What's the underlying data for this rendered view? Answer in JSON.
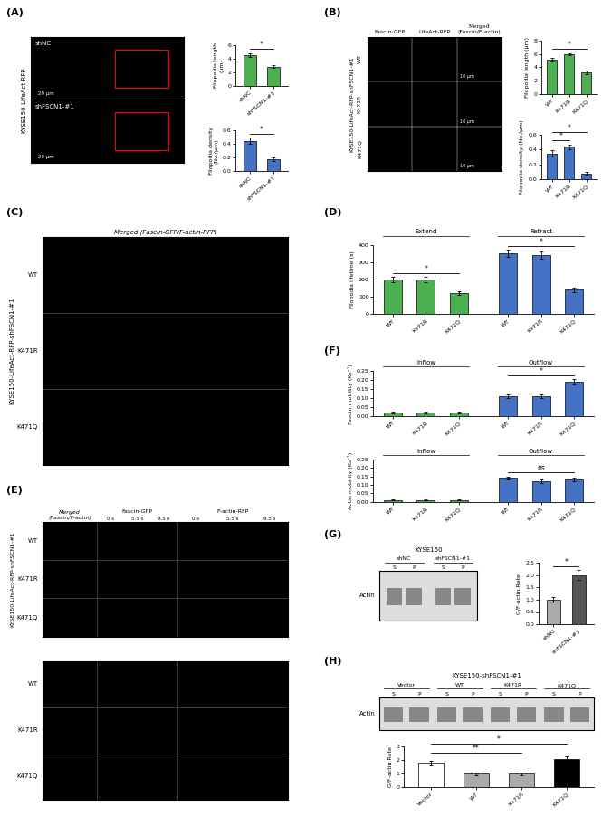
{
  "chart_data": [
    {
      "type": "image",
      "ylabel": "KYSE150-LifeAct-RFP",
      "annotations": [
        "shNC",
        "shFSCN1-#1",
        "20 μm",
        "20 μm"
      ]
    },
    {
      "type": "bar",
      "categories": [
        "shNC",
        "shFSCN1-#1"
      ],
      "values": [
        4.5,
        2.8
      ],
      "errors": [
        0.3,
        0.2
      ],
      "ylabel": "Filopodia length\n(μm)",
      "ylim": [
        0,
        6
      ],
      "yticks": [
        0,
        2,
        4,
        6
      ],
      "colors": [
        "#4CAF50",
        "#4CAF50"
      ],
      "annotations": [
        {
          "text": "*",
          "pair": [
            0,
            1
          ]
        }
      ]
    },
    {
      "type": "bar",
      "categories": [
        "shNC",
        "shFSCN1-#1"
      ],
      "values": [
        0.45,
        0.18
      ],
      "errors": [
        0.05,
        0.03
      ],
      "ylabel": "Filopodia density\n(No./μm)",
      "ylim": [
        0,
        0.6
      ],
      "yticks": [
        {
          "value": 0,
          "label": "0.0"
        },
        0.2,
        0.4,
        0.6
      ],
      "colors": [
        "#4472C4",
        "#4472C4"
      ],
      "annotations": [
        {
          "text": "*",
          "pair": [
            0,
            1
          ]
        }
      ]
    },
    {
      "type": "image",
      "ylabel": "KYSE150-LifeAct-RFP-shFSCN1-#1",
      "annotations": [
        "Fascin-GFP",
        "LifeAct-RFP",
        "Merged\n(Fascin/F-actin)",
        "WT",
        "K471R",
        "K471Q",
        "10 μm",
        "10 μm",
        "10 μm"
      ]
    },
    {
      "type": "bar",
      "categories": [
        "WT",
        "K471R",
        "K471Q"
      ],
      "values": [
        5.2,
        6.0,
        3.2
      ],
      "errors": [
        0.2,
        0.15,
        0.25
      ],
      "ylabel": "Filopodia length (μm)",
      "ylim": [
        0,
        8
      ],
      "yticks": [
        0,
        2,
        4,
        6,
        8
      ],
      "colors": [
        "#4CAF50",
        "#4CAF50",
        "#4CAF50"
      ],
      "annotations": [
        {
          "text": "*",
          "pair": [
            0,
            2
          ]
        }
      ]
    },
    {
      "type": "bar",
      "categories": [
        "WT",
        "K471R",
        "K471Q"
      ],
      "values": [
        0.35,
        0.44,
        0.08
      ],
      "errors": [
        0.04,
        0.03,
        0.02
      ],
      "ylabel": "Filopodia density (No./μm)",
      "ylim": [
        0,
        0.6
      ],
      "yticks": [
        {
          "value": 0,
          "label": "0.0"
        },
        0.2,
        0.4,
        0.6
      ],
      "colors": [
        "#4472C4",
        "#4472C4",
        "#4472C4"
      ],
      "annotations": [
        {
          "text": "*",
          "pair": [
            0,
            1
          ]
        },
        {
          "text": "*",
          "pair": [
            0,
            2
          ]
        }
      ]
    },
    {
      "type": "image",
      "title": "Merged (Fascin-GFP/F-actin-RFP)",
      "ylabel": "KYSE150-LifeAct-RFP-shFSCN1-#1",
      "annotations": [
        "WT",
        "K471R",
        "K471Q"
      ]
    },
    {
      "type": "bar",
      "categories": [
        "WT",
        "K471R",
        "K471Q"
      ],
      "series": [
        {
          "name": "Extend",
          "color": "#4CAF50",
          "values": [
            200,
            200,
            120
          ],
          "errors": [
            15,
            15,
            10
          ]
        },
        {
          "name": "Retract",
          "color": "#4472C4",
          "values": [
            350,
            340,
            140
          ],
          "errors": [
            20,
            20,
            15
          ]
        }
      ],
      "ylabel": "Filopodia lifetime (s)",
      "ylim": [
        0,
        400
      ],
      "yticks": [
        0,
        100,
        200,
        300,
        400
      ],
      "annotations": [
        {
          "text": "*",
          "series": 0,
          "pair": [
            0,
            2
          ]
        },
        {
          "text": "*",
          "series": 1,
          "pair": [
            0,
            2
          ]
        }
      ]
    },
    {
      "type": "image",
      "ylabel": "KYSE150-LifeAct-RFP-shFSCN1-#1",
      "annotations": [
        "Merged\n(Fascin/F-actin)",
        "Fascin-GFP",
        "F-actin-RFP",
        "WT",
        "K471R",
        "K471Q",
        "0 s",
        "5.5 s",
        "9.5 s",
        "0 s",
        "5.5 s",
        "9.5 s"
      ]
    },
    {
      "type": "bar",
      "categories": [
        "WT",
        "K471R",
        "K471Q"
      ],
      "series": [
        {
          "name": "Inflow",
          "color": "#4CAF50",
          "values": [
            0.02,
            0.02,
            0.02
          ],
          "errors": [
            0.003,
            0.003,
            0.003
          ]
        },
        {
          "name": "Outflow",
          "color": "#4472C4",
          "values": [
            0.11,
            0.11,
            0.19
          ],
          "errors": [
            0.01,
            0.01,
            0.015
          ]
        }
      ],
      "ylabel": "Fascin mobility (Ks⁻¹)",
      "ylim": [
        0,
        0.25
      ],
      "yticks": [
        {
          "value": 0,
          "label": "0.00"
        },
        0.05,
        {
          "value": 0.1,
          "label": "0.10"
        },
        0.15,
        {
          "value": 0.2,
          "label": "0.20"
        },
        0.25
      ],
      "annotations": [
        {
          "text": "*",
          "series": 1,
          "pair": [
            0,
            2
          ]
        }
      ]
    },
    {
      "type": "bar",
      "categories": [
        "WT",
        "K471R",
        "K471Q"
      ],
      "series": [
        {
          "name": "Inflow",
          "color": "#4CAF50",
          "values": [
            0.01,
            0.01,
            0.01
          ],
          "errors": [
            0.002,
            0.002,
            0.002
          ]
        },
        {
          "name": "Outflow",
          "color": "#4472C4",
          "values": [
            0.14,
            0.12,
            0.13
          ],
          "errors": [
            0.01,
            0.01,
            0.01
          ]
        }
      ],
      "ylabel": "Actin mobility (Ks⁻¹)",
      "ylim": [
        0,
        0.25
      ],
      "yticks": [
        {
          "value": 0,
          "label": "0.00"
        },
        0.05,
        {
          "value": 0.1,
          "label": "0.10"
        },
        0.15,
        {
          "value": 0.2,
          "label": "0.20"
        },
        0.25
      ],
      "annotations": [
        {
          "text": "ns",
          "series": 1,
          "pair": [
            0,
            2
          ]
        }
      ]
    },
    {
      "type": "blot",
      "title": "KYSE150",
      "ylabel": "Actin",
      "annotations": [
        "shNC",
        "shFSCN1-#1",
        "S",
        "P",
        "S",
        "P"
      ]
    },
    {
      "type": "bar",
      "categories": [
        "shNC",
        "shFSCN1-#1"
      ],
      "values": [
        1.0,
        2.0
      ],
      "errors": [
        0.1,
        0.2
      ],
      "ylabel": "G/F-actin Rate",
      "ylim": [
        0,
        2.5
      ],
      "yticks": [
        {
          "value": 0,
          "label": "0.0"
        },
        0.5,
        {
          "value": 1,
          "label": "1.0"
        },
        1.5,
        {
          "value": 2,
          "label": "2.0"
        },
        2.5
      ],
      "colors": [
        "#AAAAAA",
        "#555555"
      ],
      "annotations": [
        {
          "text": "*",
          "pair": [
            0,
            1
          ]
        }
      ]
    },
    {
      "type": "blot",
      "title": "KYSE150-shFSCN1-#1",
      "ylabel": "Actin",
      "annotations": [
        "Vector",
        "WT",
        "K471R",
        "K471Q",
        "S",
        "P",
        "S",
        "P",
        "S",
        "P",
        "S",
        "P"
      ]
    },
    {
      "type": "bar",
      "categories": [
        "Vector",
        "WT",
        "K471R",
        "K471Q"
      ],
      "values": [
        1.8,
        1.0,
        1.0,
        2.1
      ],
      "errors": [
        0.15,
        0.1,
        0.1,
        0.2
      ],
      "ylabel": "G/F-actin Rate",
      "ylim": [
        0,
        3
      ],
      "yticks": [
        0,
        1,
        2,
        3
      ],
      "colors": [
        "white",
        "#AAAAAA",
        "#AAAAAA",
        "black"
      ],
      "annotations": [
        {
          "text": "**",
          "pair": [
            0,
            2
          ]
        },
        {
          "text": "*",
          "pair": [
            0,
            3
          ]
        }
      ]
    },
    {
      "type": "image",
      "annotations": [
        "WT",
        "K471R",
        "K471Q"
      ]
    }
  ],
  "annotations": [
    "(A)",
    "(B)",
    "(C)",
    "(D)",
    "(E)",
    "(F)",
    "(G)",
    "(H)"
  ]
}
